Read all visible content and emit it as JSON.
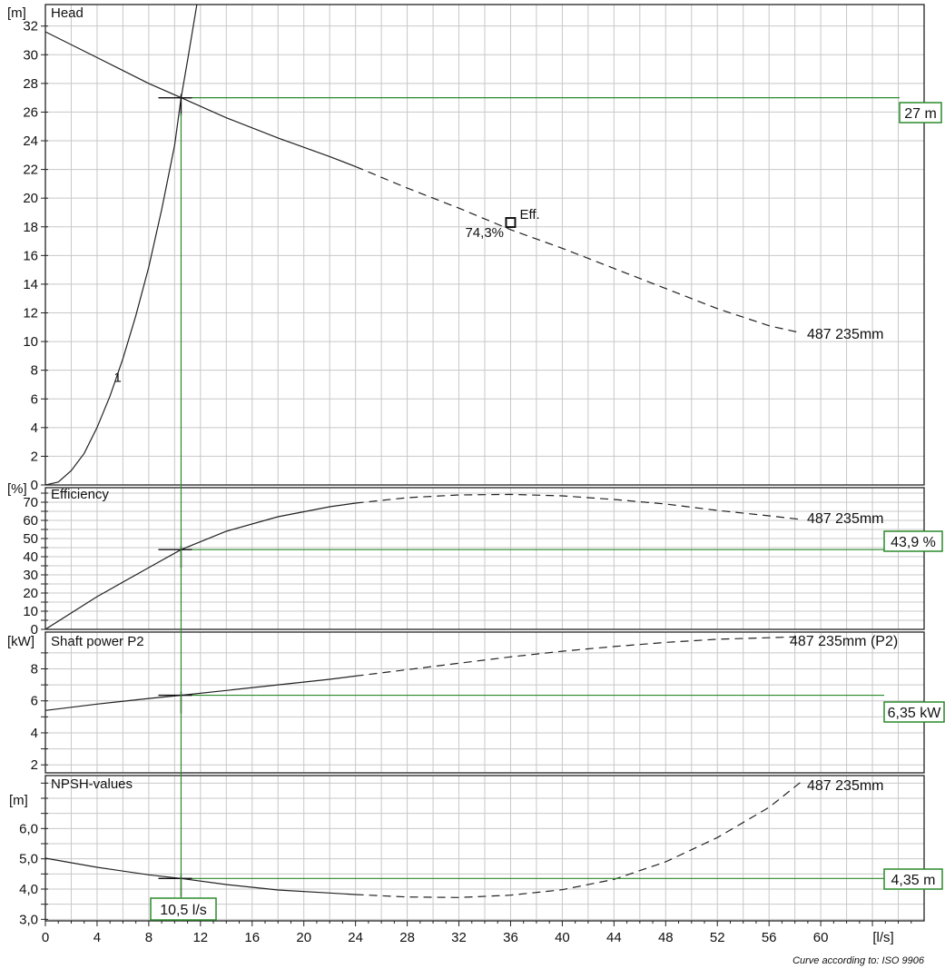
{
  "chart_data": {
    "type": "line",
    "footer": "Curve according to: ISO 9906",
    "x_axis": {
      "unit_label": "[l/s]",
      "range": [
        0,
        68
      ],
      "ticks": [
        0,
        4,
        8,
        12,
        16,
        20,
        24,
        28,
        32,
        36,
        40,
        44,
        48,
        52,
        56,
        60
      ]
    },
    "operating_point": {
      "flow": 10.5,
      "flow_label": "10,5 l/s"
    },
    "panels": [
      {
        "id": "head",
        "title": "Head",
        "unit_label": "[m]",
        "ylim": [
          0,
          33.5
        ],
        "ticks": [
          0,
          2,
          4,
          6,
          8,
          10,
          12,
          14,
          16,
          18,
          20,
          22,
          24,
          26,
          28,
          30,
          32
        ],
        "tick_labels": [
          "0",
          "2",
          "4",
          "6",
          "8",
          "10",
          "12",
          "14",
          "16",
          "18",
          "20",
          "22",
          "24",
          "26",
          "28",
          "30",
          "32"
        ],
        "series": [
          {
            "name": "487 235mm",
            "style": "solid-then-dashed",
            "dash_from_x": 24,
            "x": [
              0,
              4,
              8,
              10.5,
              14,
              18,
              22,
              24,
              28,
              32,
              36,
              40,
              44,
              48,
              52,
              56,
              58.5
            ],
            "y": [
              31.6,
              29.8,
              28.0,
              27.0,
              25.6,
              24.2,
              22.9,
              22.2,
              20.7,
              19.3,
              17.8,
              16.5,
              15.1,
              13.7,
              12.3,
              11.1,
              10.6
            ]
          },
          {
            "name": "1",
            "style": "solid",
            "x": [
              0,
              1,
              2,
              3,
              4,
              5,
              6,
              7,
              8,
              9,
              10,
              10.5,
              11,
              12
            ],
            "y": [
              0,
              0.2,
              1.0,
              2.2,
              4.0,
              6.2,
              8.8,
              11.8,
              15.2,
              19.2,
              23.7,
              27.0,
              29.6,
              35.0
            ]
          }
        ],
        "annotations": {
          "eff_marker": {
            "x": 36,
            "y": 18.3,
            "label": "Eff.",
            "value": "74,3%"
          }
        },
        "op_value_label": "27 m",
        "op_value": 27
      },
      {
        "id": "efficiency",
        "title": "Efficiency",
        "unit_label": "[%]",
        "ylim": [
          0,
          78
        ],
        "ticks": [
          0,
          5,
          10,
          15,
          20,
          25,
          30,
          35,
          40,
          45,
          50,
          55,
          60,
          65,
          70,
          75
        ],
        "tick_labels": [
          "0",
          "",
          "10",
          "",
          "20",
          "",
          "30",
          "",
          "40",
          "",
          "50",
          "",
          "60",
          "",
          "70",
          ""
        ],
        "series": [
          {
            "name": "487 235mm",
            "style": "solid-then-dashed",
            "dash_from_x": 24,
            "x": [
              0,
              4,
              8,
              10.5,
              14,
              18,
              22,
              24,
              28,
              32,
              36,
              40,
              44,
              48,
              52,
              56,
              58.5
            ],
            "y": [
              0,
              18,
              34,
              43.9,
              54,
              62,
              67.5,
              69.5,
              72.5,
              74,
              74.3,
              73.5,
              71.5,
              69,
              65.5,
              62.5,
              60.5
            ]
          }
        ],
        "op_value_label": "43,9 %",
        "op_value": 43.9
      },
      {
        "id": "shaft_power",
        "title": "Shaft power P2",
        "unit_label": "[kW]",
        "ylim": [
          1.5,
          10.3
        ],
        "ticks": [
          2,
          3,
          4,
          5,
          6,
          7,
          8,
          9
        ],
        "tick_labels": [
          "2",
          "",
          "4",
          "",
          "6",
          "",
          "8",
          ""
        ],
        "series": [
          {
            "name": "487 235mm (P2)",
            "style": "solid-then-dashed",
            "dash_from_x": 24,
            "x": [
              0,
              4,
              8,
              10.5,
              14,
              18,
              22,
              24,
              28,
              32,
              36,
              40,
              44,
              48,
              52,
              56,
              58
            ],
            "y": [
              5.4,
              5.8,
              6.15,
              6.35,
              6.65,
              7.0,
              7.35,
              7.55,
              7.95,
              8.35,
              8.75,
              9.1,
              9.4,
              9.65,
              9.85,
              9.95,
              10.0
            ]
          }
        ],
        "op_value_label": "6,35 kW",
        "op_value": 6.35
      },
      {
        "id": "npsh",
        "title": "NPSH-values",
        "unit_label": "[m]",
        "ylim": [
          2.95,
          7.75
        ],
        "ticks": [
          3,
          3.5,
          4,
          4.5,
          5,
          5.5,
          6,
          6.5,
          7,
          7.5
        ],
        "tick_labels": [
          "3,0",
          "",
          "4,0",
          "",
          "5,0",
          "",
          "6,0",
          "",
          "",
          ""
        ],
        "series": [
          {
            "name": "487 235mm",
            "style": "solid-then-dashed",
            "dash_from_x": 24,
            "x": [
              0,
              4,
              8,
              10.5,
              14,
              18,
              22,
              24,
              28,
              32,
              36,
              40,
              44,
              48,
              52,
              56,
              58.5
            ],
            "y": [
              5.02,
              4.72,
              4.47,
              4.35,
              4.15,
              3.97,
              3.87,
              3.82,
              3.74,
              3.72,
              3.8,
              3.98,
              4.32,
              4.9,
              5.7,
              6.7,
              7.55
            ]
          }
        ],
        "op_value_label": "4,35 m",
        "op_value": 4.35
      }
    ]
  }
}
